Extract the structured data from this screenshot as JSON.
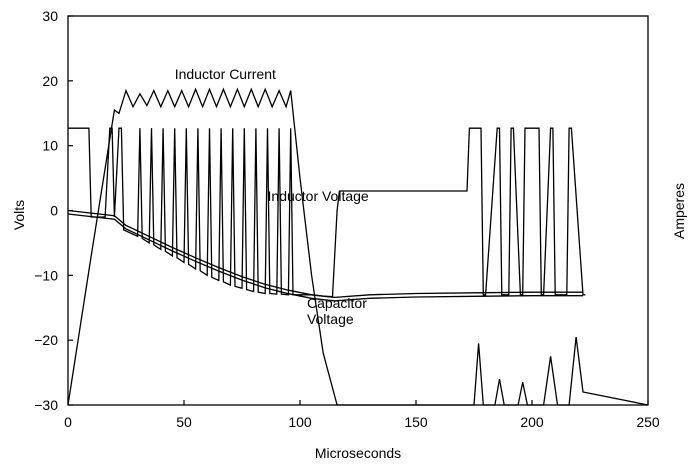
{
  "chart_data": {
    "type": "line",
    "xlabel": "Microseconds",
    "ylabel": "Volts",
    "y2label": "Amperes",
    "xlim": [
      0,
      250
    ],
    "ylim": [
      -30,
      30
    ],
    "x_ticks": [
      "0",
      "50",
      "100",
      "150",
      "200",
      "250"
    ],
    "y_ticks": [
      "30",
      "20",
      "10",
      "0",
      "−10",
      "−20",
      "−30"
    ],
    "grid": false,
    "annotations": [
      {
        "text": "Inductor Current",
        "x": 46,
        "y": 20.3
      },
      {
        "text": "Inductor Voltage",
        "x": 86,
        "y": 1.5
      },
      {
        "text": "Capacitor",
        "x": 103,
        "y": -15
      },
      {
        "text": "Voltage",
        "x": 103,
        "y": -17.5
      }
    ],
    "series": [
      {
        "name": "Inductor Current",
        "color": "#000000",
        "x": [
          0,
          10,
          20,
          22,
          25,
          28,
          31,
          34,
          37,
          40,
          43,
          46,
          49,
          52,
          55,
          58,
          61,
          64,
          67,
          70,
          73,
          76,
          79,
          82,
          85,
          88,
          91,
          94,
          96,
          100,
          105,
          110,
          116,
          175,
          177,
          179,
          184,
          186,
          188,
          194,
          196,
          198,
          205,
          208,
          211,
          216,
          219,
          222,
          250
        ],
        "y": [
          -30,
          -7,
          15.5,
          15,
          18.5,
          16,
          18,
          16.2,
          18.5,
          16,
          18.5,
          16,
          18.5,
          16,
          18.7,
          16,
          18.7,
          16,
          18.7,
          16,
          18.7,
          16,
          18.7,
          16,
          18.7,
          16,
          18.5,
          16,
          18.5,
          5,
          -10,
          -22,
          -30,
          -30,
          -20.5,
          -30,
          -30,
          -26,
          -30,
          -30,
          -26.5,
          -30,
          -30,
          -22.5,
          -30,
          -30,
          -19.5,
          -28,
          -30
        ]
      },
      {
        "name": "Inductor Voltage",
        "color": "#000000",
        "x": [
          0,
          8,
          9,
          10,
          16,
          18,
          19,
          20,
          22,
          23,
          24,
          30,
          31,
          32,
          35,
          36,
          37,
          40,
          41,
          42,
          45,
          46,
          47,
          50,
          51,
          52,
          55,
          56,
          57,
          60,
          61,
          62,
          65,
          66,
          67,
          70,
          71,
          72,
          75,
          76,
          77,
          80,
          81,
          82,
          85,
          86,
          87,
          90,
          91,
          92,
          95,
          96,
          97,
          100,
          105,
          110,
          114,
          116,
          117,
          172,
          173,
          174,
          178,
          179,
          180,
          185,
          186,
          187,
          190,
          191,
          192,
          195,
          196,
          197,
          203,
          204,
          205,
          208,
          209,
          210,
          215,
          216,
          217,
          222,
          223
        ],
        "y": [
          12.7,
          12.7,
          12.7,
          -1,
          -1,
          12.7,
          12.7,
          -1,
          12.7,
          12.7,
          -3,
          -4,
          12.7,
          -4.3,
          -5,
          12.7,
          -5.3,
          -6,
          12.7,
          -6.3,
          -7,
          12.7,
          -7.3,
          -8,
          12.7,
          -8.3,
          -9,
          12.7,
          -9.3,
          -10,
          12.7,
          -10.3,
          -10.8,
          12.7,
          -11,
          -11.5,
          12.7,
          -11.7,
          -12,
          12.7,
          -12.2,
          -12.5,
          12.7,
          -12.6,
          -12.8,
          12.7,
          -12.8,
          -12.9,
          12.7,
          -12.9,
          -13,
          12.7,
          -13,
          -13,
          -13,
          -13.2,
          -13.3,
          0,
          3,
          3,
          12.7,
          12.7,
          12.7,
          -13,
          -13,
          12.7,
          12.7,
          -13,
          -13,
          12.7,
          12.7,
          -13,
          -13,
          12.7,
          12.7,
          -13,
          -13,
          12.7,
          12.7,
          -13,
          -13,
          12.7,
          12.7,
          -13,
          -13
        ]
      },
      {
        "name": "Capacitor Voltage",
        "color": "#000000",
        "x": [
          0,
          20,
          25,
          35,
          45,
          55,
          65,
          75,
          85,
          95,
          105,
          112,
          115,
          130,
          150,
          175,
          200,
          222
        ],
        "y": [
          0,
          -0.8,
          -2.3,
          -4,
          -5.7,
          -7.3,
          -8.8,
          -10.2,
          -11.4,
          -12.3,
          -13,
          -13.3,
          -13.4,
          -13,
          -12.8,
          -12.7,
          -12.6,
          -12.6
        ]
      }
    ]
  }
}
